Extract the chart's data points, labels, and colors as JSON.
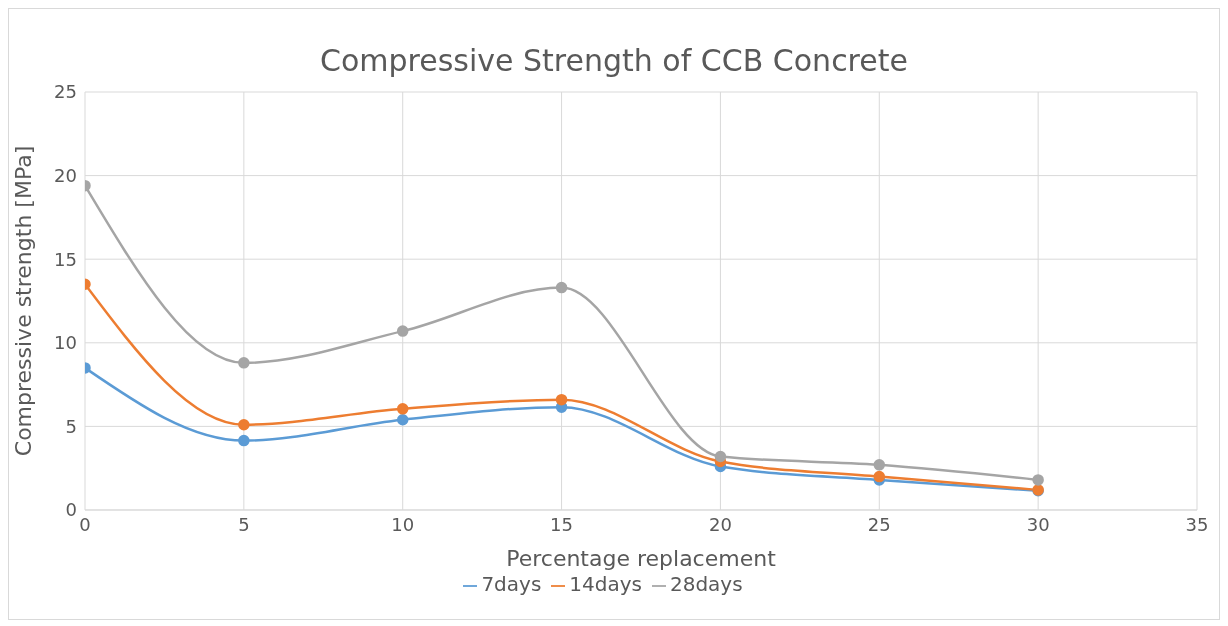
{
  "chart_data": {
    "type": "line",
    "title": "Compressive Strength of CCB Concrete",
    "xlabel": "Percentage replacement",
    "ylabel": "Compressive strength [MPa]",
    "x": [
      0,
      5,
      10,
      15,
      20,
      25,
      30
    ],
    "series": [
      {
        "name": "7days",
        "color": "#5b9bd5",
        "values": [
          8.5,
          4.15,
          5.4,
          6.15,
          2.6,
          1.8,
          1.15
        ]
      },
      {
        "name": "14days",
        "color": "#ed7d31",
        "values": [
          13.5,
          5.1,
          6.05,
          6.6,
          2.9,
          2.0,
          1.2
        ]
      },
      {
        "name": "28days",
        "color": "#a5a5a5",
        "values": [
          19.4,
          8.8,
          10.7,
          13.3,
          3.2,
          2.7,
          1.8
        ]
      }
    ],
    "xlim": [
      0,
      35
    ],
    "xticks": [
      0,
      5,
      10,
      15,
      20,
      25,
      30,
      35
    ],
    "ylim": [
      0,
      25
    ],
    "yticks": [
      0,
      5,
      10,
      15,
      20,
      25
    ],
    "grid": true,
    "legend": "bottom",
    "marker": "circle",
    "line_style": "solid"
  }
}
